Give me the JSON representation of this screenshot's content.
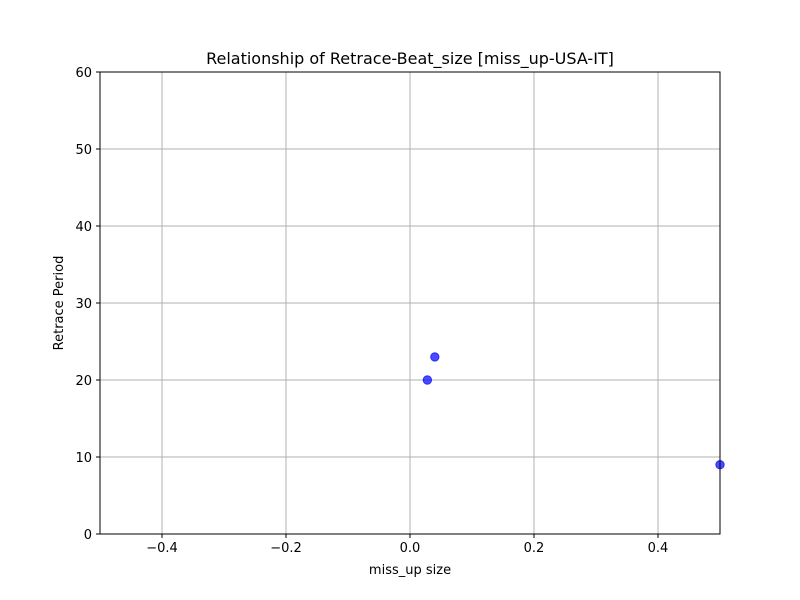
{
  "chart_data": {
    "type": "scatter",
    "title": "Relationship of Retrace-Beat_size [miss_up-USA-IT]",
    "xlabel": "miss_up size",
    "ylabel": "Retrace Period",
    "xlim": [
      -0.5,
      0.5
    ],
    "ylim": [
      0,
      60
    ],
    "xticks": [
      -0.4,
      -0.2,
      0.0,
      0.2,
      0.4
    ],
    "xtick_labels": [
      "−0.4",
      "−0.2",
      "0.0",
      "0.2",
      "0.4"
    ],
    "yticks": [
      0,
      10,
      20,
      30,
      40,
      50,
      60
    ],
    "ytick_labels": [
      "0",
      "10",
      "20",
      "30",
      "40",
      "50",
      "60"
    ],
    "grid": true,
    "points": [
      {
        "x": 0.028,
        "y": 20
      },
      {
        "x": 0.04,
        "y": 23
      },
      {
        "x": 0.5,
        "y": 9
      }
    ],
    "colors": {
      "point": "#0000ff",
      "grid": "#b0b0b0",
      "axes": "#000000"
    }
  }
}
